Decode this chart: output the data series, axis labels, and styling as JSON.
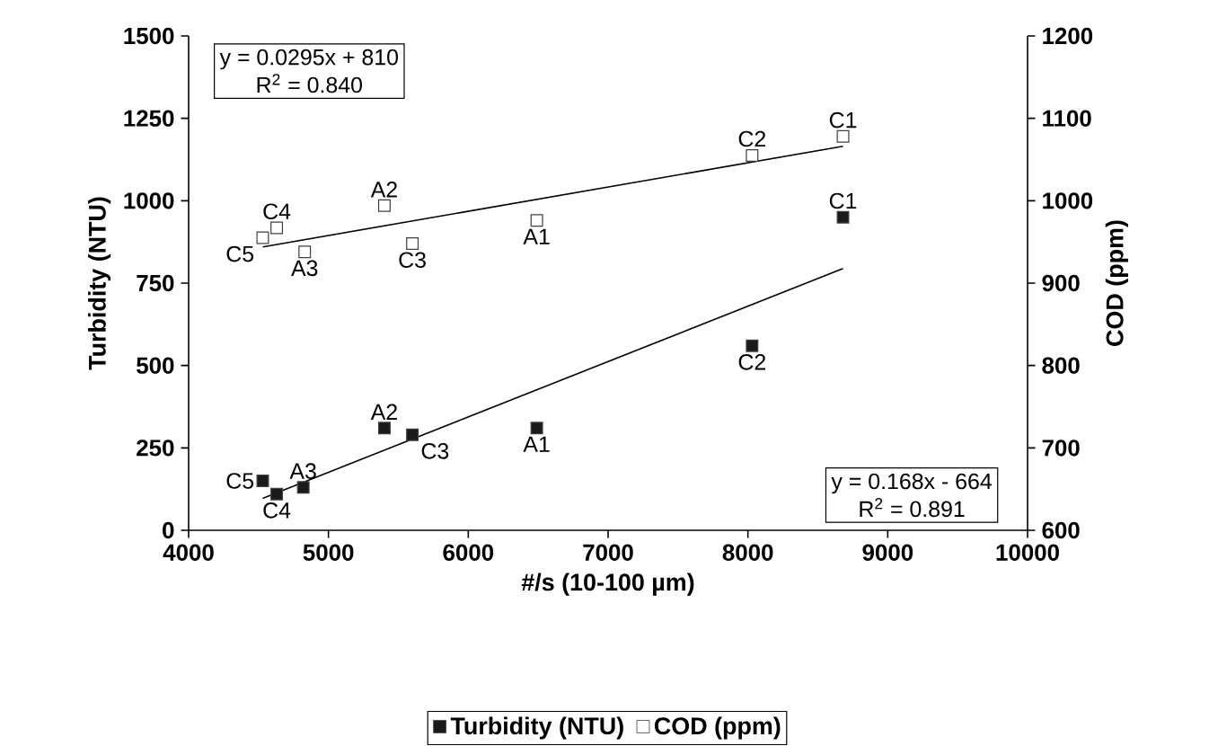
{
  "chart_data": {
    "type": "scatter",
    "xlabel": "#/s (10-100 µm)",
    "ylabel": "Turbidity (NTU)",
    "y2label": "COD (ppm)",
    "xlim": [
      4000,
      10000
    ],
    "xticks": [
      4000,
      5000,
      6000,
      7000,
      8000,
      9000,
      10000
    ],
    "ylim": [
      0,
      1500
    ],
    "yticks": [
      0,
      250,
      500,
      750,
      1000,
      1250,
      1500
    ],
    "y2lim": [
      600,
      1200
    ],
    "y2ticks": [
      600,
      700,
      800,
      900,
      1000,
      1100,
      1200
    ],
    "marker": "square",
    "legend": "bottom",
    "series": [
      {
        "name": "Turbidity (NTU)",
        "color": "#1a1a1a",
        "x": [
          4530,
          4630,
          4820,
          5400,
          5600,
          6490,
          8030,
          8680
        ],
        "values": [
          150,
          110,
          130,
          310,
          290,
          310,
          560,
          950
        ]
      },
      {
        "name": "COD (ppm)",
        "color": "#ffffff",
        "axis": "y2",
        "x": [
          4530,
          4630,
          4830,
          5400,
          5600,
          6490,
          8030,
          8680
        ],
        "values": [
          955,
          967,
          938,
          994,
          948,
          976,
          1055,
          1078
        ]
      },
      {
        "type": "line",
        "marker": "none",
        "color": "#000000",
        "x": [
          4530,
          8680
        ],
        "values": [
          97,
          794
        ]
      },
      {
        "type": "line",
        "marker": "none",
        "color": "#000000",
        "axis": "y2",
        "x": [
          4530,
          8680
        ],
        "values": [
          944,
          1066
        ]
      }
    ],
    "annotations": [
      {
        "text": "C5",
        "x": 4530,
        "y": 150
      },
      {
        "text": "C4",
        "x": 4630,
        "y": 110
      },
      {
        "text": "A3",
        "x": 4820,
        "y": 130
      },
      {
        "text": "A2",
        "x": 5400,
        "y": 310
      },
      {
        "text": "C3",
        "x": 5600,
        "y": 290
      },
      {
        "text": "A1",
        "x": 6490,
        "y": 310
      },
      {
        "text": "C2",
        "x": 8030,
        "y": 560
      },
      {
        "text": "C1",
        "x": 8680,
        "y": 950
      },
      {
        "text": "C5",
        "x": 4530,
        "y": 888
      },
      {
        "text": "C4",
        "x": 4630,
        "y": 918
      },
      {
        "text": "A3",
        "x": 4830,
        "y": 845
      },
      {
        "text": "A2",
        "x": 5400,
        "y": 985
      },
      {
        "text": "C3",
        "x": 5600,
        "y": 870
      },
      {
        "text": "A1",
        "x": 6490,
        "y": 940
      },
      {
        "text": "C2",
        "x": 8030,
        "y": 1138
      },
      {
        "text": "C1",
        "x": 8680,
        "y": 1195
      },
      "y = 0.0295x + 810",
      "R$^{2}$ = 0.840",
      "y = 0.168x - 664",
      "R$^{2}$ = 0.891"
    ]
  }
}
